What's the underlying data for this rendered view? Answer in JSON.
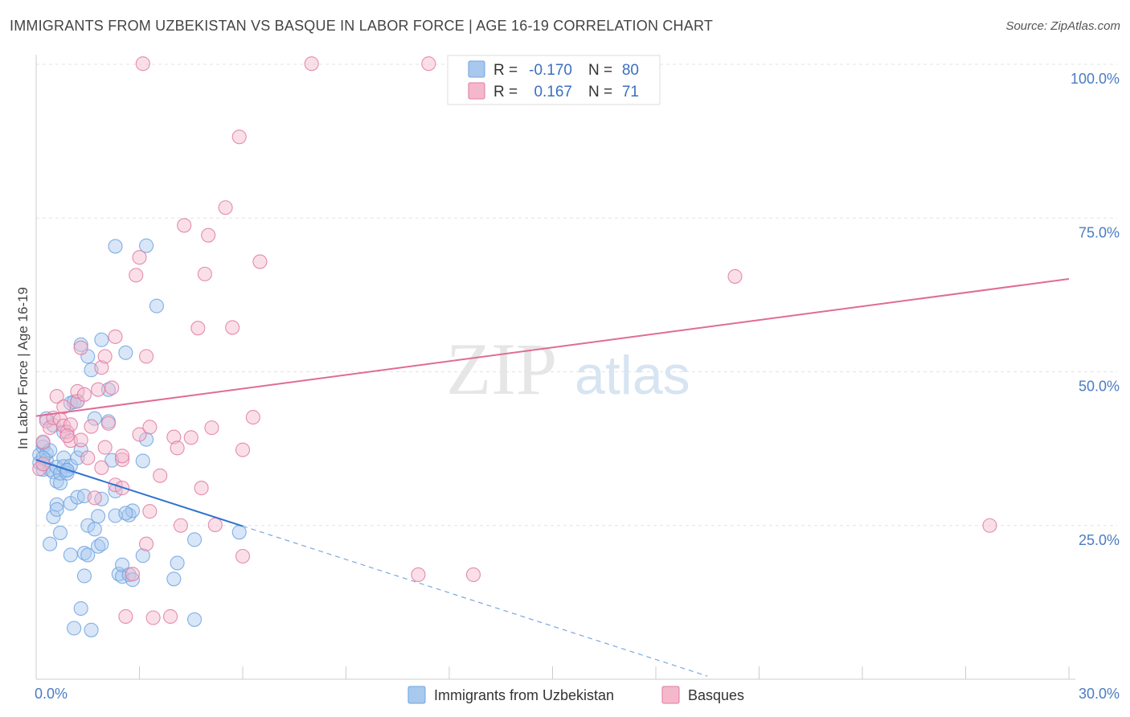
{
  "header": {
    "title": "IMMIGRANTS FROM UZBEKISTAN VS BASQUE IN LABOR FORCE | AGE 16-19 CORRELATION CHART",
    "source": "Source: ZipAtlas.com"
  },
  "watermark": {
    "zip": "ZIP",
    "atlas": "atlas"
  },
  "legend": {
    "rows": [
      {
        "r_label": "R =",
        "r_value": "-0.170",
        "n_label": "N =",
        "n_value": "80",
        "color": "#a9c8ee"
      },
      {
        "r_label": "R =",
        "r_value": "0.167",
        "n_label": "N =",
        "n_value": "71",
        "color": "#f5b8cb"
      }
    ]
  },
  "bottom_legend": [
    {
      "label": "Immigrants from Uzbekistan",
      "color": "#a9c8ee"
    },
    {
      "label": "Basques",
      "color": "#f5b8cb"
    }
  ],
  "chart_data": {
    "type": "scatter",
    "title": "IMMIGRANTS FROM UZBEKISTAN VS BASQUE IN LABOR FORCE | AGE 16-19 CORRELATION CHART",
    "xlabel": "",
    "ylabel": "In Labor Force | Age 16-19",
    "xlim": [
      0,
      30
    ],
    "ylim": [
      0,
      100
    ],
    "x_tick_labels": [
      "0.0%",
      "30.0%"
    ],
    "y_tick_labels": [
      "100.0%",
      "75.0%",
      "50.0%",
      "25.0%"
    ],
    "y_ticks": [
      100,
      75,
      50,
      25
    ],
    "grid": true,
    "series": [
      {
        "name": "Immigrants from Uzbekistan",
        "color": "#6fa3e0",
        "fill": "#a9c8ee",
        "trend": {
          "x0": 0,
          "y0": 35.7,
          "x1": 6.0,
          "y1": 24.9,
          "dash_to_x": 19.5,
          "dash_to_y": 0.5
        },
        "points": [
          [
            0.1,
            36.5
          ],
          [
            0.1,
            35.2
          ],
          [
            0.2,
            34.1
          ],
          [
            0.2,
            37.8
          ],
          [
            0.2,
            38.4
          ],
          [
            0.3,
            36.7
          ],
          [
            0.3,
            35.6
          ],
          [
            0.3,
            42.4
          ],
          [
            0.4,
            37.2
          ],
          [
            0.4,
            34.1
          ],
          [
            0.4,
            22.0
          ],
          [
            0.5,
            41.3
          ],
          [
            0.5,
            33.7
          ],
          [
            0.5,
            26.4
          ],
          [
            0.6,
            34.5
          ],
          [
            0.6,
            32.2
          ],
          [
            0.6,
            28.4
          ],
          [
            0.6,
            27.6
          ],
          [
            0.7,
            31.9
          ],
          [
            0.7,
            33.5
          ],
          [
            0.7,
            23.8
          ],
          [
            0.8,
            36.0
          ],
          [
            0.8,
            34.6
          ],
          [
            0.8,
            40.2
          ],
          [
            0.9,
            34.0
          ],
          [
            0.9,
            33.5
          ],
          [
            1.0,
            34.7
          ],
          [
            1.0,
            44.9
          ],
          [
            1.0,
            28.6
          ],
          [
            1.0,
            20.2
          ],
          [
            1.1,
            45.1
          ],
          [
            1.1,
            8.3
          ],
          [
            1.2,
            29.6
          ],
          [
            1.2,
            45.2
          ],
          [
            1.2,
            36.0
          ],
          [
            1.3,
            54.4
          ],
          [
            1.3,
            37.3
          ],
          [
            1.3,
            11.5
          ],
          [
            1.4,
            16.8
          ],
          [
            1.4,
            20.5
          ],
          [
            1.4,
            29.8
          ],
          [
            1.5,
            52.5
          ],
          [
            1.5,
            25.0
          ],
          [
            1.5,
            20.2
          ],
          [
            1.6,
            8.0
          ],
          [
            1.6,
            50.3
          ],
          [
            1.7,
            42.4
          ],
          [
            1.7,
            24.4
          ],
          [
            1.8,
            26.5
          ],
          [
            1.8,
            21.6
          ],
          [
            1.9,
            55.2
          ],
          [
            1.9,
            22.0
          ],
          [
            2.1,
            47.1
          ],
          [
            2.1,
            41.9
          ],
          [
            2.2,
            35.6
          ],
          [
            2.3,
            26.6
          ],
          [
            2.3,
            30.6
          ],
          [
            2.4,
            17.1
          ],
          [
            2.5,
            16.7
          ],
          [
            2.5,
            18.6
          ],
          [
            2.6,
            53.1
          ],
          [
            2.7,
            26.7
          ],
          [
            2.7,
            17.0
          ],
          [
            2.8,
            16.2
          ],
          [
            2.8,
            27.4
          ],
          [
            3.1,
            35.5
          ],
          [
            3.1,
            20.1
          ],
          [
            3.2,
            39.0
          ],
          [
            3.2,
            70.5
          ],
          [
            3.5,
            60.7
          ],
          [
            4.0,
            16.3
          ],
          [
            4.1,
            18.9
          ],
          [
            4.6,
            9.7
          ],
          [
            4.6,
            22.7
          ],
          [
            2.3,
            70.4
          ],
          [
            5.9,
            23.9
          ],
          [
            0.2,
            36.0
          ],
          [
            0.9,
            34.0
          ],
          [
            1.9,
            29.3
          ],
          [
            2.6,
            27.0
          ]
        ]
      },
      {
        "name": "Basques",
        "color": "#e07aa0",
        "fill": "#f5b8cb",
        "trend": {
          "x0": 0,
          "y0": 42.8,
          "x1": 30,
          "y1": 65.1
        },
        "points": [
          [
            0.1,
            34.2
          ],
          [
            0.2,
            35.0
          ],
          [
            0.2,
            38.6
          ],
          [
            0.3,
            42.0
          ],
          [
            0.4,
            40.9
          ],
          [
            0.5,
            42.5
          ],
          [
            0.6,
            46.0
          ],
          [
            0.7,
            42.2
          ],
          [
            0.8,
            41.2
          ],
          [
            0.8,
            44.3
          ],
          [
            0.9,
            40.2
          ],
          [
            1.0,
            38.8
          ],
          [
            1.0,
            41.4
          ],
          [
            1.2,
            45.2
          ],
          [
            1.2,
            46.8
          ],
          [
            1.3,
            53.9
          ],
          [
            1.3,
            38.9
          ],
          [
            1.4,
            46.3
          ],
          [
            1.5,
            36.0
          ],
          [
            1.6,
            41.1
          ],
          [
            1.7,
            29.5
          ],
          [
            1.8,
            47.1
          ],
          [
            1.9,
            50.7
          ],
          [
            1.9,
            34.4
          ],
          [
            2.0,
            52.5
          ],
          [
            2.0,
            37.7
          ],
          [
            2.1,
            41.6
          ],
          [
            2.2,
            47.4
          ],
          [
            2.3,
            55.7
          ],
          [
            2.3,
            31.6
          ],
          [
            2.5,
            35.7
          ],
          [
            2.5,
            36.3
          ],
          [
            2.5,
            31.1
          ],
          [
            2.6,
            10.2
          ],
          [
            2.8,
            17.1
          ],
          [
            2.9,
            65.7
          ],
          [
            3.0,
            68.6
          ],
          [
            3.0,
            39.8
          ],
          [
            3.2,
            22.0
          ],
          [
            3.2,
            52.5
          ],
          [
            3.3,
            27.3
          ],
          [
            3.3,
            41.0
          ],
          [
            3.4,
            10.0
          ],
          [
            3.6,
            33.1
          ],
          [
            3.9,
            10.2
          ],
          [
            4.0,
            39.4
          ],
          [
            4.1,
            37.6
          ],
          [
            4.2,
            25.0
          ],
          [
            4.3,
            73.8
          ],
          [
            4.5,
            39.3
          ],
          [
            4.7,
            57.1
          ],
          [
            4.8,
            31.1
          ],
          [
            4.9,
            65.9
          ],
          [
            5.0,
            72.2
          ],
          [
            5.1,
            40.9
          ],
          [
            5.2,
            25.1
          ],
          [
            5.5,
            76.7
          ],
          [
            5.7,
            57.2
          ],
          [
            5.9,
            88.2
          ],
          [
            6.0,
            20.0
          ],
          [
            6.0,
            37.3
          ],
          [
            6.3,
            42.6
          ],
          [
            6.5,
            67.9
          ],
          [
            3.1,
            100.1
          ],
          [
            8.0,
            100.1
          ],
          [
            11.4,
            100.1
          ],
          [
            11.1,
            17.0
          ],
          [
            12.7,
            17.0
          ],
          [
            20.3,
            65.5
          ],
          [
            27.7,
            25.0
          ],
          [
            0.9,
            39.6
          ]
        ]
      }
    ]
  }
}
